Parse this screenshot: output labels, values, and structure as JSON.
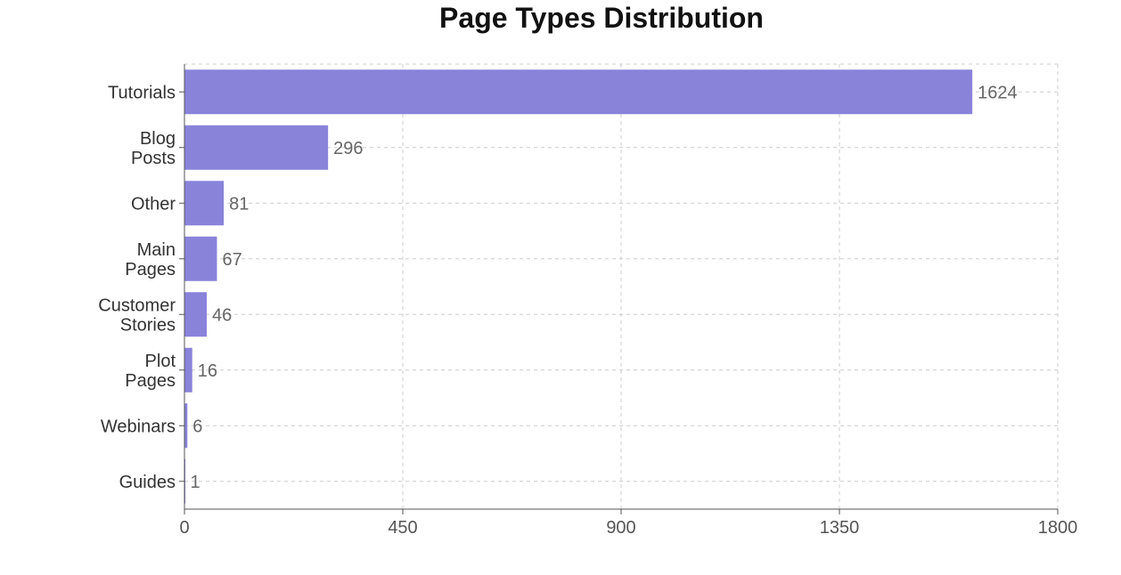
{
  "chart_data": {
    "type": "bar",
    "orientation": "horizontal",
    "title": "Page Types Distribution",
    "categories": [
      [
        "Tutorials"
      ],
      [
        "Blog",
        "Posts"
      ],
      [
        "Other"
      ],
      [
        "Main",
        "Pages"
      ],
      [
        "Customer",
        "Stories"
      ],
      [
        "Plot",
        "Pages"
      ],
      [
        "Webinars"
      ],
      [
        "Guides"
      ]
    ],
    "values": [
      1624,
      296,
      81,
      67,
      46,
      16,
      6,
      1
    ],
    "xlim": [
      0,
      1800
    ],
    "xticks": [
      0,
      450,
      900,
      1350,
      1800
    ],
    "grid": true,
    "bar_color": "#8983da",
    "xlabel": "",
    "ylabel": ""
  }
}
